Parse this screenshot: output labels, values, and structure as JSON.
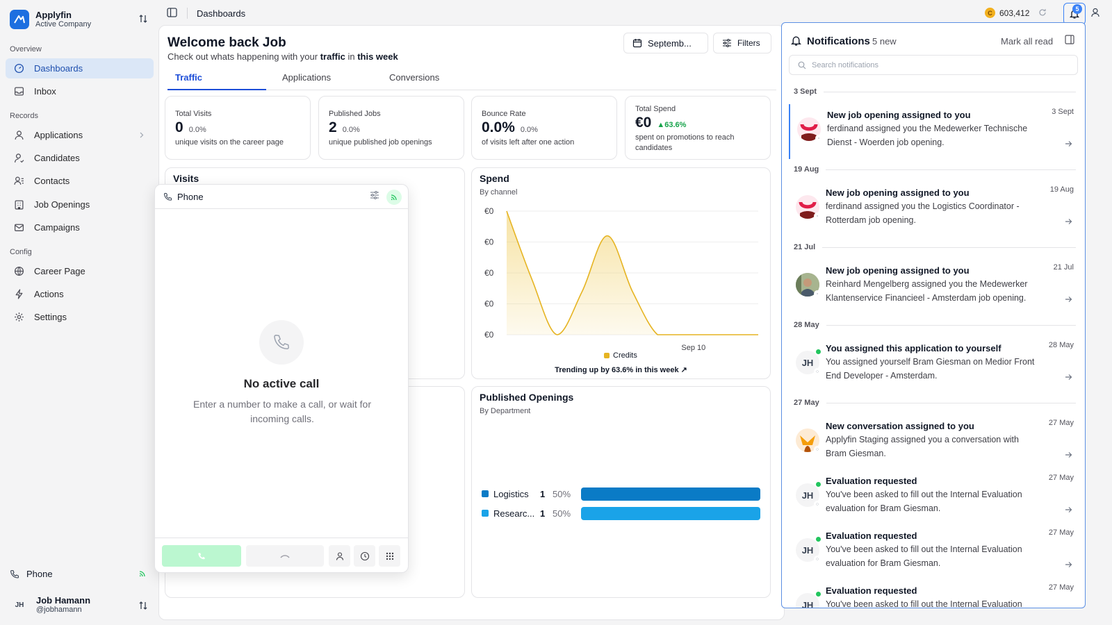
{
  "sidebar": {
    "brand": {
      "name": "Applyfin",
      "sub": "Active Company"
    },
    "sections": {
      "overview": "Overview",
      "records": "Records",
      "config": "Config"
    },
    "items": [
      {
        "label": "Dashboards",
        "icon": "gauge-icon"
      },
      {
        "label": "Inbox",
        "icon": "inbox-icon"
      },
      {
        "label": "Applications",
        "icon": "user-icon"
      },
      {
        "label": "Candidates",
        "icon": "user-check-icon"
      },
      {
        "label": "Contacts",
        "icon": "contacts-icon"
      },
      {
        "label": "Job Openings",
        "icon": "building-icon"
      },
      {
        "label": "Campaigns",
        "icon": "mail-icon"
      },
      {
        "label": "Career Page",
        "icon": "globe-icon"
      },
      {
        "label": "Actions",
        "icon": "lightning-icon"
      },
      {
        "label": "Settings",
        "icon": "gear-icon"
      }
    ],
    "phone_label": "Phone",
    "user": {
      "initials": "JH",
      "name": "Job Hamann",
      "handle": "@jobhamann"
    }
  },
  "topbar": {
    "title": "Dashboards",
    "credits": "603,412",
    "credits_coin": "C",
    "notif_badge": "5"
  },
  "dashboard": {
    "welcome": "Welcome back Job",
    "sub_prefix": "Check out whats happening with your",
    "sub_bold1": "traffic",
    "sub_mid": "in",
    "sub_bold2": "this week",
    "date_button": "Septemb...",
    "filters_button": "Filters",
    "tabs": [
      "Traffic",
      "Applications",
      "Conversions"
    ],
    "stats": [
      {
        "label": "Total Visits",
        "value": "0",
        "delta": "0.0%",
        "desc": "unique visits on the career page"
      },
      {
        "label": "Published Jobs",
        "value": "2",
        "delta": "0.0%",
        "desc": "unique published job openings"
      },
      {
        "label": "Bounce Rate",
        "value": "0.0%",
        "delta": "0.0%",
        "desc": "of visits left after one action"
      },
      {
        "label": "Total Spend",
        "value": "€0",
        "delta": "▲63.6%",
        "desc": "spent on promotions to reach candidates"
      }
    ],
    "visits_title": "Visits",
    "spend": {
      "title": "Spend",
      "sub": "By channel",
      "y_ticks": [
        "€0",
        "€0",
        "€0",
        "€0",
        "€0"
      ],
      "x_label": "Sep 10",
      "legend": "Credits",
      "footer": "Trending up by 63.6% in this week ↗"
    },
    "published": {
      "title": "Published Openings",
      "sub": "By Department",
      "rows": [
        {
          "name": "Logistics",
          "count": "1",
          "pct": "50%",
          "color": "#0a7bc6"
        },
        {
          "name": "Researc...",
          "count": "1",
          "pct": "50%",
          "color": "#1aa3e8"
        }
      ]
    }
  },
  "chart_data": {
    "type": "area",
    "title": "Spend",
    "subtitle": "By channel",
    "x": [
      "",
      "",
      "",
      "",
      "",
      "",
      "",
      "Sep 10",
      "",
      "",
      ""
    ],
    "series": [
      {
        "name": "Credits",
        "color": "#e6b422",
        "values": [
          1.0,
          0.45,
          0.0,
          0.35,
          0.8,
          0.35,
          0.0,
          0.0,
          0.0,
          0.0,
          0.0
        ]
      }
    ],
    "y_tick_labels": [
      "€0",
      "€0",
      "€0",
      "€0",
      "€0"
    ],
    "ylim": [
      0,
      1
    ],
    "grid": true,
    "legend": "bottom"
  },
  "phone": {
    "title": "Phone",
    "no_call": "No active call",
    "no_call_sub": "Enter a number to make a call, or wait for incoming calls."
  },
  "notifications": {
    "title": "Notifications",
    "new_count": "5 new",
    "mark_all": "Mark all read",
    "search_placeholder": "Search notifications",
    "groups": [
      {
        "date": "3 Sept",
        "items": [
          {
            "title": "New job opening assigned to you",
            "body": "ferdinand assigned you the Medewerker Technische Dienst - Woerden job opening.",
            "time": "3 Sept",
            "avatar": "logo",
            "unread": true
          }
        ]
      },
      {
        "date": "19 Aug",
        "items": [
          {
            "title": "New job opening assigned to you",
            "body": "ferdinand assigned you the Logistics Coordinator - Rotterdam job opening.",
            "time": "19 Aug",
            "avatar": "logo"
          }
        ]
      },
      {
        "date": "21 Jul",
        "items": [
          {
            "title": "New job opening assigned to you",
            "body": "Reinhard Mengelberg assigned you the Medewerker Klantenservice Financieel - Amsterdam job opening.",
            "time": "21 Jul",
            "avatar": "photo"
          }
        ]
      },
      {
        "date": "28 May",
        "items": [
          {
            "title": "You assigned this application to yourself",
            "body": "You assigned yourself Bram Giesman on Medior Front End Developer - Amsterdam.",
            "time": "28 May",
            "avatar": "JH"
          }
        ]
      },
      {
        "date": "27 May",
        "items": [
          {
            "title": "New conversation assigned to you",
            "body": "Applyfin Staging assigned you a conversation with Bram Giesman.",
            "time": "27 May",
            "avatar": "fox"
          },
          {
            "title": "Evaluation requested",
            "body": "You've been asked to fill out the Internal Evaluation evaluation for Bram Giesman.",
            "time": "27 May",
            "avatar": "JH"
          },
          {
            "title": "Evaluation requested",
            "body": "You've been asked to fill out the Internal Evaluation evaluation for Bram Giesman.",
            "time": "27 May",
            "avatar": "JH"
          },
          {
            "title": "Evaluation requested",
            "body": "You've been asked to fill out the Internal Evaluation",
            "time": "27 May",
            "avatar": "JH"
          }
        ]
      }
    ]
  }
}
